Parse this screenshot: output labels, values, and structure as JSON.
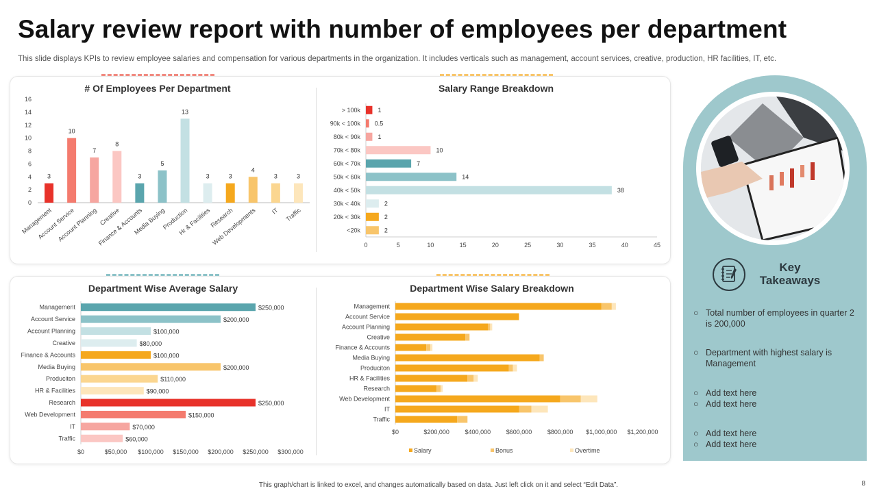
{
  "title": "Salary review report with number of employees per department",
  "subtitle": "This slide displays KPIs to review employee salaries and compensation for various departments in the organization. It includes verticals such as management, account services, creative, production, HR facilities, IT, etc.",
  "footer": "This graph/chart is linked to excel, and changes automatically based on data. Just left click on it and select “Edit Data”.",
  "page_number": "8",
  "takeaways": {
    "title_line1": "Key",
    "title_line2": "Takeaways",
    "items": [
      "Total number of employees in quarter 2 is 200,000",
      "Department with highest salary is Management",
      "Add text here",
      "Add text here",
      "Add text here",
      "Add text here"
    ]
  },
  "icons": [
    "notebook-icon",
    "analytics-photo"
  ],
  "chart_data": [
    {
      "type": "bar",
      "title": "# Of Employees Per Department",
      "categories": [
        "Management",
        "Account Service",
        "Account Planning",
        "Creative",
        "Finance & Accounts",
        "Media Buying",
        "Production",
        "Hr & Facilities",
        "Research",
        "Web Developments",
        "IT",
        "Traffic"
      ],
      "values": [
        3,
        10,
        7,
        8,
        3,
        5,
        13,
        3,
        3,
        4,
        3,
        3
      ],
      "colors": [
        "#e8322a",
        "#f47b6e",
        "#f6a6a0",
        "#fbc7c3",
        "#5aa5ad",
        "#8cc2c8",
        "#c3e0e3",
        "#ddedef",
        "#f5a81d",
        "#f8c56b",
        "#fbd690",
        "#fde6bb"
      ],
      "ylim": [
        0,
        16
      ],
      "yticks": [
        0,
        2,
        4,
        6,
        8,
        10,
        12,
        14,
        16
      ],
      "grid": false
    },
    {
      "type": "bar",
      "orientation": "horizontal",
      "title": "Salary Range Breakdown",
      "categories": [
        "> 100k",
        "90k < 100k",
        "80k < 90k",
        "70k < 80k",
        "60k < 70k",
        "50k < 60k",
        "40k < 50k",
        "30k < 40k",
        "20k < 30k",
        "<20k"
      ],
      "values": [
        1,
        0.5,
        1,
        10,
        7,
        14,
        38,
        2,
        2,
        2
      ],
      "value_labels": [
        "1",
        "0.5",
        "1",
        "10",
        "7",
        "14",
        "38",
        "2",
        "2",
        "2"
      ],
      "colors": [
        "#e8322a",
        "#f47b6e",
        "#f6a6a0",
        "#fbc7c3",
        "#5aa5ad",
        "#8cc2c8",
        "#c3e0e3",
        "#ddedef",
        "#f5a81d",
        "#f8c56b"
      ],
      "xlim": [
        0,
        45
      ],
      "xticks": [
        0,
        5,
        10,
        15,
        20,
        25,
        30,
        35,
        40,
        45
      ]
    },
    {
      "type": "bar",
      "orientation": "horizontal",
      "title": "Department Wise Average Salary",
      "categories": [
        "Management",
        "Account Service",
        "Account Planning",
        "Creative",
        "Finance & Accounts",
        "Media Buying",
        "Produciton",
        "HR & Facilities",
        "Research",
        "Web Development",
        "IT",
        "Traffic"
      ],
      "values": [
        250000,
        200000,
        100000,
        80000,
        100000,
        200000,
        110000,
        90000,
        250000,
        150000,
        70000,
        60000
      ],
      "value_labels": [
        "$250,000",
        "$200,000",
        "$100,000",
        "$80,000",
        "$100,000",
        "$200,000",
        "$110,000",
        "$90,000",
        "$250,000",
        "$150,000",
        "$70,000",
        "$60,000"
      ],
      "colors": [
        "#5aa5ad",
        "#8cc2c8",
        "#c3e0e3",
        "#ddedef",
        "#f5a81d",
        "#f8c56b",
        "#fbd690",
        "#fde6bb",
        "#e8322a",
        "#f47b6e",
        "#f6a6a0",
        "#fbc7c3"
      ],
      "xlim": [
        0,
        300000
      ],
      "xticks": [
        "$0",
        "$50,000",
        "$100,000",
        "$150,000",
        "$200,000",
        "$250,000",
        "$300,000"
      ]
    },
    {
      "type": "bar",
      "orientation": "horizontal",
      "stacked": true,
      "title": "Department Wise Salary Breakdown",
      "categories": [
        "Management",
        "Account Service",
        "Account Planning",
        "Creative",
        "Finance & Accounts",
        "Media Buying",
        "Produciton",
        "HR & Facilities",
        "Research",
        "Web Development",
        "IT",
        "Traffic"
      ],
      "series": [
        {
          "name": "Salary",
          "color": "#f5a81d",
          "values": [
            1000000,
            600000,
            450000,
            340000,
            150000,
            700000,
            550000,
            350000,
            200000,
            800000,
            600000,
            300000
          ]
        },
        {
          "name": "Bonus",
          "color": "#f8c56b",
          "values": [
            50000,
            0,
            10000,
            20000,
            20000,
            20000,
            20000,
            30000,
            20000,
            100000,
            60000,
            50000
          ]
        },
        {
          "name": "Overtime",
          "color": "#fde6bb",
          "values": [
            20000,
            0,
            10000,
            0,
            10000,
            0,
            20000,
            20000,
            10000,
            80000,
            80000,
            0
          ]
        }
      ],
      "xlim": [
        0,
        1200000
      ],
      "xticks": [
        "$0",
        "$200,000",
        "$400,000",
        "$600,000",
        "$800,000",
        "$1,000,000",
        "$1,200,000"
      ],
      "legend": "bottom"
    }
  ]
}
